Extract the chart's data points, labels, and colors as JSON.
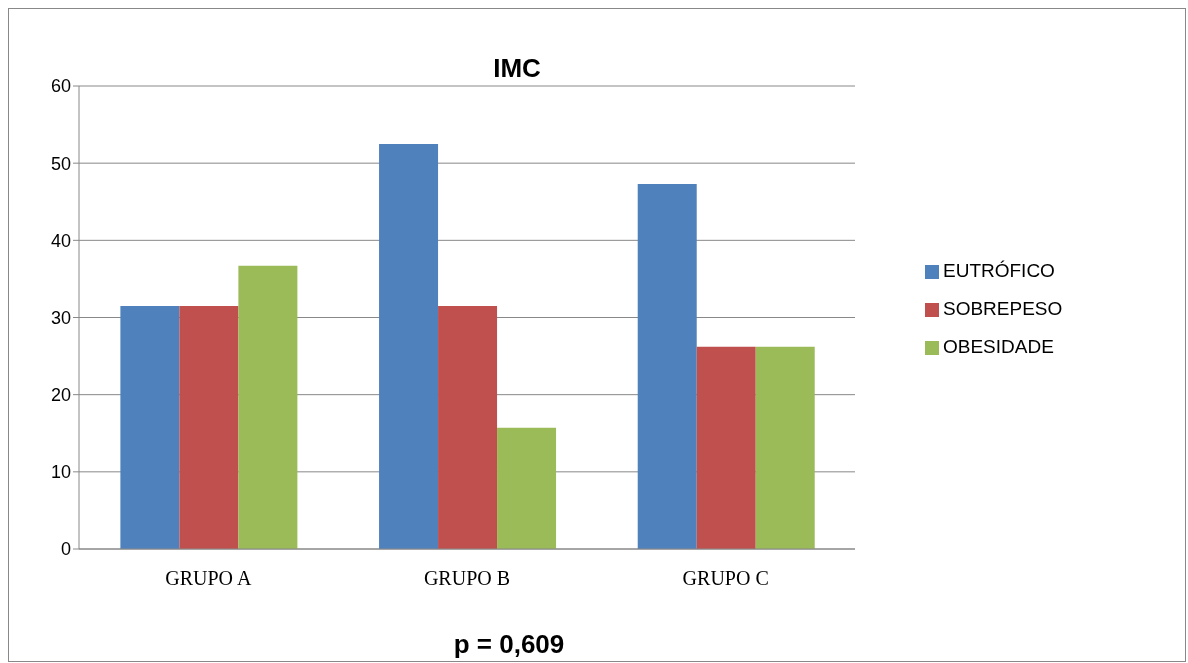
{
  "chart_data": {
    "type": "bar",
    "title": "IMC",
    "categories": [
      "GRUPO A",
      "GRUPO B",
      "GRUPO C"
    ],
    "series": [
      {
        "name": "EUTRÓFICO",
        "color": "#4f81bd",
        "values": [
          31.5,
          52.5,
          47.3
        ]
      },
      {
        "name": "SOBREPESO",
        "color": "#c0504d",
        "values": [
          31.5,
          31.5,
          26.2
        ]
      },
      {
        "name": "OBESIDADE",
        "color": "#9bbb59",
        "values": [
          36.7,
          15.7,
          26.2
        ]
      }
    ],
    "ylim": [
      0,
      60
    ],
    "yticks": [
      0,
      10,
      20,
      30,
      40,
      50,
      60
    ],
    "grid": "y",
    "legend": "right",
    "annotations": [
      "p = 0,609"
    ]
  }
}
